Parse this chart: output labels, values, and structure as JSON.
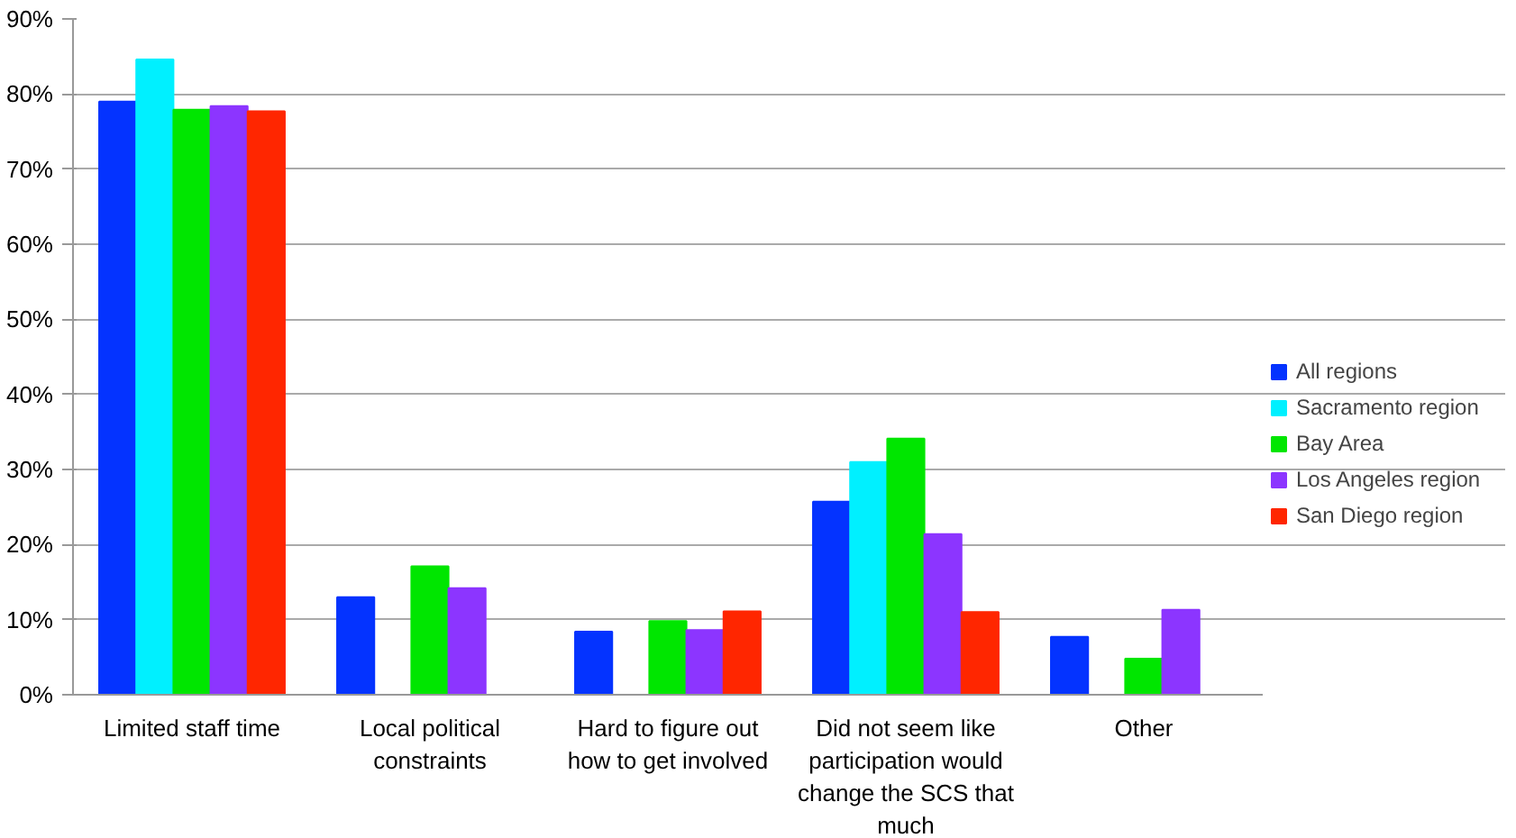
{
  "chart_data": {
    "type": "bar",
    "categories": [
      "Limited staff time",
      "Local political constraints",
      "Hard to figure out how to get involved",
      "Did not seem like participation would change the SCS that much",
      "Other"
    ],
    "series": [
      {
        "name": "All regions",
        "color": "#0433ff",
        "values": [
          79.0,
          13.0,
          8.4,
          25.7,
          7.7
        ]
      },
      {
        "name": "Sacramento region",
        "color": "#00f0ff",
        "values": [
          84.6,
          null,
          null,
          31.0,
          null
        ]
      },
      {
        "name": "Bay Area",
        "color": "#00e600",
        "values": [
          77.9,
          17.1,
          9.8,
          34.1,
          4.8
        ]
      },
      {
        "name": "Los Angeles region",
        "color": "#8c35ff",
        "values": [
          78.4,
          14.2,
          8.6,
          21.4,
          11.3
        ]
      },
      {
        "name": "San Diego region",
        "color": "#ff2600",
        "values": [
          77.7,
          null,
          11.1,
          11.0,
          null
        ]
      }
    ],
    "ylim": [
      0,
      90
    ],
    "yticks": [
      {
        "value": 0,
        "label": "0%"
      },
      {
        "value": 10,
        "label": "10%"
      },
      {
        "value": 20,
        "label": "20%"
      },
      {
        "value": 30,
        "label": "30%"
      },
      {
        "value": 40,
        "label": "40%"
      },
      {
        "value": 50,
        "label": "50%"
      },
      {
        "value": 60,
        "label": "60%"
      },
      {
        "value": 70,
        "label": "70%"
      },
      {
        "value": 80,
        "label": "80%"
      },
      {
        "value": 90,
        "label": "90%"
      }
    ],
    "grid": "y",
    "legend": "right"
  }
}
